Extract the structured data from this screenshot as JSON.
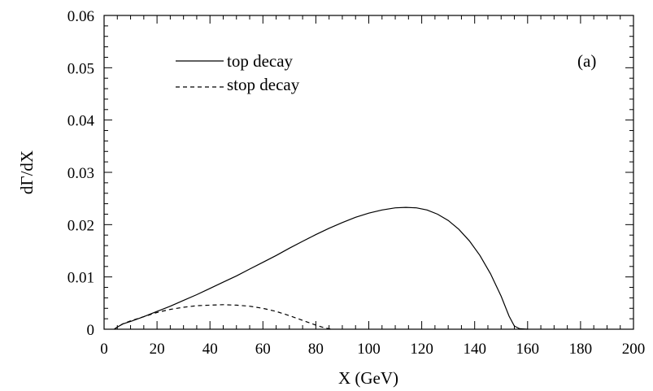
{
  "chart_data": {
    "type": "line",
    "xlabel": "X (GeV)",
    "ylabel": "dΓ/dX",
    "panel_label": "(a)",
    "xlim": [
      0,
      200
    ],
    "ylim": [
      0,
      0.06
    ],
    "x_ticks": [
      0,
      20,
      40,
      60,
      80,
      100,
      120,
      140,
      160,
      180,
      200
    ],
    "y_ticks": [
      0,
      0.01,
      0.02,
      0.03,
      0.04,
      0.05,
      0.06
    ],
    "x_tick_labels": [
      "0",
      "20",
      "40",
      "60",
      "80",
      "100",
      "120",
      "140",
      "160",
      "180",
      "200"
    ],
    "y_tick_labels": [
      "0",
      "0.01",
      "0.02",
      "0.03",
      "0.04",
      "0.05",
      "0.06"
    ],
    "grid": false,
    "legend_position": "top-left",
    "series": [
      {
        "name": "top decay",
        "style": "solid",
        "color": "#000000",
        "points": [
          [
            3.8,
            0
          ],
          [
            5,
            0.0004
          ],
          [
            7,
            0.001
          ],
          [
            10,
            0.0015
          ],
          [
            15,
            0.0024
          ],
          [
            20,
            0.0034
          ],
          [
            25,
            0.0044
          ],
          [
            30,
            0.0055
          ],
          [
            35,
            0.0066
          ],
          [
            40,
            0.0078
          ],
          [
            45,
            0.009
          ],
          [
            50,
            0.0102
          ],
          [
            55,
            0.0115
          ],
          [
            60,
            0.0128
          ],
          [
            65,
            0.0141
          ],
          [
            70,
            0.0155
          ],
          [
            75,
            0.0168
          ],
          [
            80,
            0.0181
          ],
          [
            85,
            0.0193
          ],
          [
            90,
            0.0204
          ],
          [
            95,
            0.0214
          ],
          [
            100,
            0.0222
          ],
          [
            105,
            0.0228
          ],
          [
            110,
            0.0232
          ],
          [
            114,
            0.0233
          ],
          [
            118,
            0.0232
          ],
          [
            122,
            0.0228
          ],
          [
            126,
            0.022
          ],
          [
            130,
            0.0208
          ],
          [
            134,
            0.0191
          ],
          [
            138,
            0.0169
          ],
          [
            142,
            0.0141
          ],
          [
            146,
            0.0106
          ],
          [
            150,
            0.0063
          ],
          [
            153,
            0.0025
          ],
          [
            155,
            0.0006
          ],
          [
            157,
            0.0001
          ],
          [
            160,
            0
          ]
        ]
      },
      {
        "name": "stop decay",
        "style": "dashed",
        "color": "#000000",
        "points": [
          [
            3.8,
            0
          ],
          [
            5,
            0.0004
          ],
          [
            7,
            0.001
          ],
          [
            10,
            0.0016
          ],
          [
            15,
            0.0024
          ],
          [
            20,
            0.0032
          ],
          [
            25,
            0.0038
          ],
          [
            30,
            0.0042
          ],
          [
            35,
            0.0045
          ],
          [
            40,
            0.0046
          ],
          [
            45,
            0.0047
          ],
          [
            50,
            0.0046
          ],
          [
            55,
            0.0044
          ],
          [
            60,
            0.004
          ],
          [
            65,
            0.0034
          ],
          [
            70,
            0.0026
          ],
          [
            75,
            0.0017
          ],
          [
            80,
            0.0008
          ],
          [
            83,
            0.0003
          ],
          [
            86,
            0
          ]
        ]
      }
    ]
  }
}
